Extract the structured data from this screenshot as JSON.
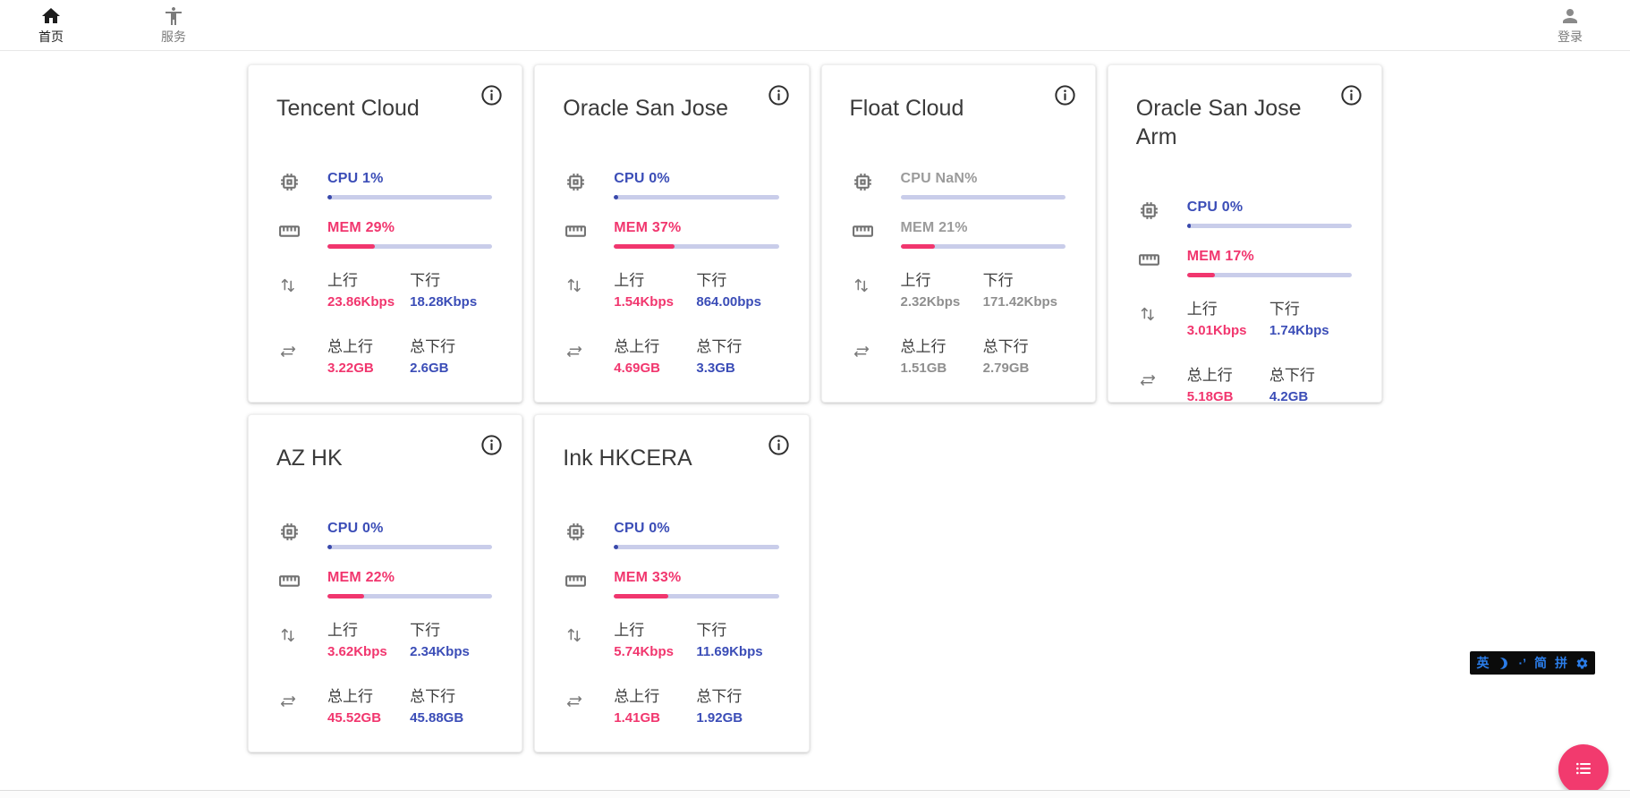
{
  "nav": {
    "home": "首页",
    "services": "服务",
    "login": "登录"
  },
  "labels": {
    "up": "上行",
    "down": "下行",
    "total_up": "总上行",
    "total_down": "总下行"
  },
  "cards": [
    {
      "title": "Tencent Cloud",
      "cpu_text": "CPU 1%",
      "cpu_pct": 1,
      "mem_text": "MEM 29%",
      "mem_pct": 29,
      "up_value": "23.86Kbps",
      "down_value": "18.28Kbps",
      "total_up_value": "3.22GB",
      "total_down_value": "2.6GB",
      "offline": false
    },
    {
      "title": "Oracle San Jose",
      "cpu_text": "CPU 0%",
      "cpu_pct": 0,
      "mem_text": "MEM 37%",
      "mem_pct": 37,
      "up_value": "1.54Kbps",
      "down_value": "864.00bps",
      "total_up_value": "4.69GB",
      "total_down_value": "3.3GB",
      "offline": false
    },
    {
      "title": "Float Cloud",
      "cpu_text": "CPU NaN%",
      "cpu_pct": null,
      "mem_text": "MEM 21%",
      "mem_pct": 21,
      "up_value": "2.32Kbps",
      "down_value": "171.42Kbps",
      "total_up_value": "1.51GB",
      "total_down_value": "2.79GB",
      "offline": true
    },
    {
      "title": "Oracle San Jose Arm",
      "cpu_text": "CPU 0%",
      "cpu_pct": 0,
      "mem_text": "MEM 17%",
      "mem_pct": 17,
      "up_value": "3.01Kbps",
      "down_value": "1.74Kbps",
      "total_up_value": "5.18GB",
      "total_down_value": "4.2GB",
      "offline": false
    },
    {
      "title": "AZ HK",
      "cpu_text": "CPU 0%",
      "cpu_pct": 0,
      "mem_text": "MEM 22%",
      "mem_pct": 22,
      "up_value": "3.62Kbps",
      "down_value": "2.34Kbps",
      "total_up_value": "45.52GB",
      "total_down_value": "45.88GB",
      "offline": false
    },
    {
      "title": "Ink HKCERA",
      "cpu_text": "CPU 0%",
      "cpu_pct": 0,
      "mem_text": "MEM 33%",
      "mem_pct": 33,
      "up_value": "5.74Kbps",
      "down_value": "11.69Kbps",
      "total_up_value": "1.41GB",
      "total_down_value": "1.92GB",
      "offline": false
    }
  ],
  "ime": {
    "lang": "英",
    "punct": "·’",
    "simplified": "简",
    "pinyin": "拼"
  },
  "colors": {
    "accent_pink": "#f1366e",
    "accent_indigo": "#3b4db7",
    "bar_track": "#c9cdea",
    "offline_gray": "#8f8f8f",
    "ime_blue": "#2b7de9",
    "ime_bg": "#0b0b0b",
    "fab_pink": "#f23a6e"
  }
}
